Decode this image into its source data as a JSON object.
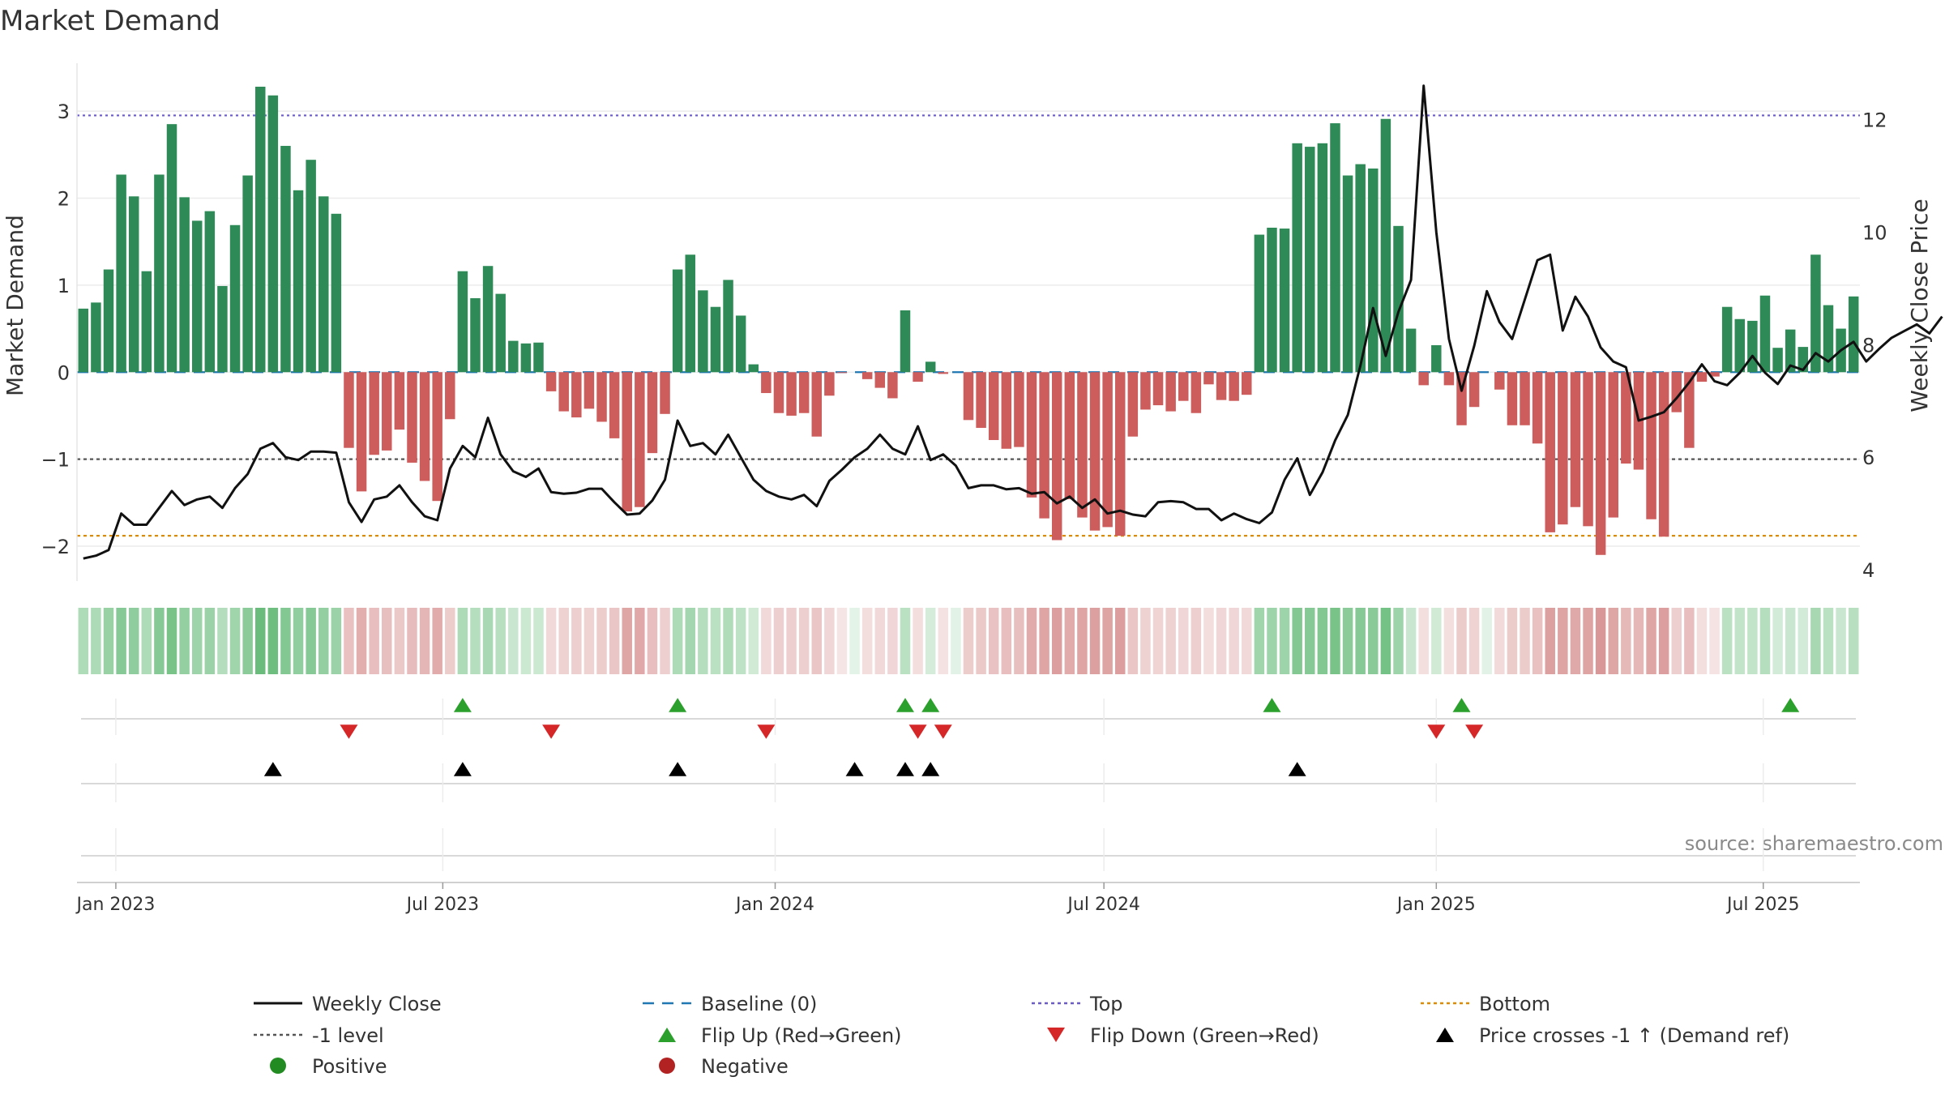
{
  "chart_data": {
    "type": "bar",
    "title": "Market Demand",
    "ylabel": "Market Demand",
    "y2label": "Weekly Close Price",
    "source": "source: sharemaestro.com",
    "ylim": [
      -2.4,
      3.55
    ],
    "y2lim": [
      3.8,
      13.0
    ],
    "yticks": [
      -2,
      -1,
      0,
      1,
      2,
      3
    ],
    "y2ticks": [
      4,
      6,
      8,
      10,
      12
    ],
    "reference_lines": {
      "top": 2.95,
      "minus_one": -1,
      "bottom": -1.88,
      "baseline": 0
    },
    "x_start": "2022-12-14",
    "week_days": 7,
    "xticks": [
      {
        "date": "2023-01-01",
        "label": "Jan 2023"
      },
      {
        "date": "2023-07-01",
        "label": "Jul 2023"
      },
      {
        "date": "2024-01-01",
        "label": "Jan 2024"
      },
      {
        "date": "2024-07-01",
        "label": "Jul 2024"
      },
      {
        "date": "2025-01-01",
        "label": "Jan 2025"
      },
      {
        "date": "2025-07-01",
        "label": "Jul 2025"
      }
    ],
    "demand": [
      0.73,
      0.8,
      1.18,
      2.27,
      2.02,
      1.16,
      2.27,
      2.85,
      2.01,
      1.74,
      1.85,
      0.99,
      1.69,
      2.26,
      3.28,
      3.18,
      2.6,
      2.09,
      2.44,
      2.02,
      1.82,
      -0.87,
      -1.37,
      -0.95,
      -0.9,
      -0.66,
      -1.04,
      -1.25,
      -1.48,
      -0.54,
      1.16,
      0.85,
      1.22,
      0.9,
      0.36,
      0.33,
      0.34,
      -0.22,
      -0.45,
      -0.52,
      -0.42,
      -0.57,
      -0.76,
      -1.6,
      -1.55,
      -0.93,
      -0.48,
      1.18,
      1.35,
      0.94,
      0.75,
      1.06,
      0.65,
      0.09,
      -0.24,
      -0.47,
      -0.5,
      -0.47,
      -0.74,
      -0.27,
      -0.01,
      0.0,
      -0.08,
      -0.18,
      -0.3,
      0.71,
      -0.11,
      0.12,
      -0.02,
      0.0,
      -0.55,
      -0.64,
      -0.78,
      -0.88,
      -0.86,
      -1.44,
      -1.68,
      -1.93,
      -1.46,
      -1.67,
      -1.82,
      -1.78,
      -1.88,
      -0.74,
      -0.43,
      -0.38,
      -0.45,
      -0.33,
      -0.47,
      -0.14,
      -0.32,
      -0.33,
      -0.26,
      1.58,
      1.66,
      1.65,
      2.63,
      2.59,
      2.63,
      2.86,
      2.26,
      2.39,
      2.34,
      2.91,
      1.68,
      0.5,
      -0.15,
      0.31,
      -0.15,
      -0.61,
      -0.4,
      0.0,
      -0.2,
      -0.61,
      -0.61,
      -0.82,
      -1.84,
      -1.75,
      -1.55,
      -1.77,
      -2.1,
      -1.67,
      -1.05,
      -1.12,
      -1.69,
      -1.89,
      -0.46,
      -0.87,
      -0.11,
      -0.05,
      0.75,
      0.61,
      0.59,
      0.88,
      0.28,
      0.49,
      0.29,
      1.35,
      0.77,
      0.5,
      0.87
    ],
    "close": [
      4.2,
      4.25,
      4.35,
      5.0,
      4.8,
      4.8,
      5.1,
      5.4,
      5.15,
      5.25,
      5.3,
      5.1,
      5.45,
      5.7,
      6.15,
      6.25,
      6.0,
      5.95,
      6.1,
      6.1,
      6.08,
      5.2,
      4.85,
      5.25,
      5.3,
      5.5,
      5.2,
      4.95,
      4.88,
      5.8,
      6.2,
      6.0,
      6.7,
      6.05,
      5.75,
      5.65,
      5.8,
      5.38,
      5.35,
      5.37,
      5.44,
      5.44,
      5.2,
      4.98,
      5.0,
      5.23,
      5.6,
      6.65,
      6.2,
      6.25,
      6.05,
      6.4,
      6.0,
      5.6,
      5.4,
      5.3,
      5.25,
      5.33,
      5.13,
      5.58,
      5.78,
      6.0,
      6.15,
      6.4,
      6.15,
      6.05,
      6.55,
      5.95,
      6.05,
      5.85,
      5.45,
      5.5,
      5.5,
      5.43,
      5.45,
      5.35,
      5.38,
      5.18,
      5.3,
      5.1,
      5.25,
      5.0,
      5.05,
      4.98,
      4.95,
      5.2,
      5.22,
      5.2,
      5.08,
      5.08,
      4.88,
      5.0,
      4.9,
      4.83,
      5.02,
      5.6,
      5.98,
      5.33,
      5.73,
      6.3,
      6.75,
      7.63,
      8.65,
      7.8,
      8.58,
      9.15,
      12.6,
      10.0,
      8.1,
      7.18,
      7.98,
      8.95,
      8.4,
      8.1,
      8.8,
      9.5,
      9.6,
      8.25,
      8.85,
      8.5,
      7.95,
      7.7,
      7.6,
      6.65,
      6.72,
      6.8,
      7.05,
      7.33,
      7.65,
      7.35,
      7.28,
      7.5,
      7.8,
      7.5,
      7.3,
      7.63,
      7.55,
      7.85,
      7.7,
      7.9,
      8.05,
      7.7,
      7.92,
      8.12,
      8.24,
      8.36,
      8.2,
      8.5
    ],
    "strip_strength": [
      0.4,
      0.42,
      0.58,
      0.7,
      0.63,
      0.4,
      0.7,
      0.8,
      0.6,
      0.52,
      0.55,
      0.36,
      0.5,
      0.66,
      0.9,
      0.88,
      0.72,
      0.62,
      0.7,
      0.6,
      0.55,
      0.32,
      0.48,
      0.35,
      0.33,
      0.26,
      0.36,
      0.42,
      0.5,
      0.22,
      0.42,
      0.34,
      0.44,
      0.33,
      0.2,
      0.18,
      0.19,
      0.12,
      0.18,
      0.2,
      0.17,
      0.22,
      0.28,
      0.55,
      0.53,
      0.35,
      0.2,
      0.42,
      0.48,
      0.35,
      0.3,
      0.38,
      0.28,
      0.14,
      0.12,
      0.2,
      0.2,
      0.2,
      0.28,
      0.14,
      0.02,
      0.0,
      0.08,
      0.12,
      0.15,
      0.3,
      0.08,
      0.1,
      0.05,
      0.02,
      0.22,
      0.26,
      0.3,
      0.34,
      0.33,
      0.5,
      0.56,
      0.62,
      0.5,
      0.56,
      0.6,
      0.58,
      0.62,
      0.28,
      0.18,
      0.16,
      0.18,
      0.15,
      0.2,
      0.08,
      0.14,
      0.14,
      0.12,
      0.5,
      0.52,
      0.52,
      0.72,
      0.7,
      0.72,
      0.8,
      0.66,
      0.7,
      0.68,
      0.82,
      0.52,
      0.2,
      0.06,
      0.14,
      0.06,
      0.24,
      0.17,
      0.02,
      0.1,
      0.24,
      0.24,
      0.32,
      0.6,
      0.58,
      0.52,
      0.58,
      0.66,
      0.55,
      0.38,
      0.4,
      0.55,
      0.62,
      0.2,
      0.34,
      0.06,
      0.04,
      0.3,
      0.26,
      0.25,
      0.34,
      0.13,
      0.2,
      0.13,
      0.45,
      0.3,
      0.2,
      0.33
    ],
    "flip_up_idx": [
      30,
      47,
      65,
      67,
      94,
      109,
      135
    ],
    "flip_down_idx": [
      21,
      37,
      54,
      66,
      68,
      107,
      110
    ],
    "price_cross_idx": [
      15,
      30,
      47,
      61,
      65,
      67,
      96
    ],
    "colors": {
      "positive_bar": "#2e8b57",
      "negative_bar": "#cd5c5c",
      "close_line": "#111111",
      "baseline": "#1f77b4",
      "top": "#6a5acd",
      "minus_one": "#555555",
      "bottom": "#e08a00",
      "flip_up": "#2ca02c",
      "flip_down": "#d62728",
      "price_cross": "#000000",
      "positive_dot": "#228b22",
      "negative_dot": "#b22222"
    },
    "legend": [
      {
        "label": "Weekly Close",
        "kind": "line",
        "color": "#111111"
      },
      {
        "label": "Baseline (0)",
        "kind": "dash",
        "color": "#1f77b4"
      },
      {
        "label": "Top",
        "kind": "dot",
        "color": "#6a5acd"
      },
      {
        "label": "Bottom",
        "kind": "dot",
        "color": "#e08a00"
      },
      {
        "label": "-1 level",
        "kind": "dot",
        "color": "#555555"
      },
      {
        "label": "Flip Up (Red→Green)",
        "kind": "tri-up",
        "color": "#2ca02c"
      },
      {
        "label": "Flip Down (Green→Red)",
        "kind": "tri-down",
        "color": "#d62728"
      },
      {
        "label": "Price crosses -1 ↑ (Demand ref)",
        "kind": "tri-up",
        "color": "#000000"
      },
      {
        "label": "Positive",
        "kind": "circle",
        "color": "#228b22"
      },
      {
        "label": "Negative",
        "kind": "circle",
        "color": "#b22222"
      }
    ]
  }
}
